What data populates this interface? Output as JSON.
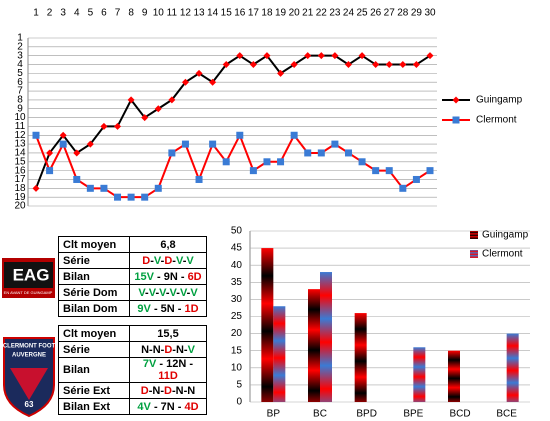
{
  "chart_data": [
    {
      "type": "line",
      "categories": [
        1,
        2,
        3,
        4,
        5,
        6,
        7,
        8,
        9,
        10,
        11,
        12,
        13,
        14,
        15,
        16,
        17,
        18,
        19,
        20,
        21,
        22,
        23,
        24,
        25,
        26,
        27,
        28,
        29,
        30
      ],
      "ylim": [
        1,
        20
      ],
      "y_inverted": true,
      "yticks": [
        1,
        2,
        3,
        4,
        5,
        6,
        7,
        8,
        9,
        10,
        11,
        12,
        13,
        14,
        15,
        16,
        17,
        18,
        19,
        20
      ],
      "grid": true,
      "legend": "right",
      "series": [
        {
          "name": "Guingamp",
          "color": "#000000",
          "marker_color": "#ff0000",
          "marker": "diamond",
          "values": [
            18,
            14,
            12,
            14,
            13,
            11,
            11,
            8,
            10,
            9,
            8,
            6,
            5,
            6,
            4,
            3,
            4,
            3,
            5,
            4,
            3,
            3,
            3,
            4,
            3,
            4,
            4,
            4,
            4,
            3
          ]
        },
        {
          "name": "Clermont",
          "color": "#ff0000",
          "marker_color": "#3a7bd5",
          "marker": "square",
          "values": [
            12,
            16,
            13,
            17,
            18,
            18,
            19,
            19,
            19,
            18,
            14,
            13,
            17,
            13,
            15,
            12,
            16,
            15,
            15,
            12,
            14,
            14,
            13,
            14,
            15,
            16,
            16,
            18,
            17,
            16
          ]
        }
      ]
    },
    {
      "type": "bar",
      "categories": [
        "BP",
        "BC",
        "BPD",
        "BPE",
        "BCD",
        "BCE"
      ],
      "ylim": [
        0,
        50
      ],
      "yticks": [
        0,
        5,
        10,
        15,
        20,
        25,
        30,
        35,
        40,
        45,
        50
      ],
      "grid": true,
      "legend": "top-right",
      "series": [
        {
          "name": "Guingamp",
          "colors": [
            "#ff0000",
            "#000000"
          ],
          "values": [
            45,
            33,
            26,
            0,
            15,
            0
          ]
        },
        {
          "name": "Clermont",
          "colors": [
            "#3a7bd5",
            "#ff0000"
          ],
          "values": [
            28,
            38,
            0,
            16,
            0,
            20
          ]
        }
      ]
    }
  ],
  "teams": [
    {
      "logo": {
        "title": "EAG",
        "subtitle": "EN AVANT DE GUINGAMP"
      },
      "table": [
        [
          "Clt moyen",
          "6,8"
        ],
        [
          "Série",
          "D-V-D-V-V"
        ],
        [
          "Bilan",
          "15V - 9N - 6D"
        ],
        [
          "Série Dom",
          "V-V-V-V-V-V"
        ],
        [
          "Bilan Dom",
          "9V - 5N - 1D"
        ]
      ]
    },
    {
      "logo": {
        "lines": [
          "CLERMONT FOOT",
          "AUVERGNE"
        ],
        "number": "63"
      },
      "table": [
        [
          "Clt moyen",
          "15,5"
        ],
        [
          "Série",
          "N-N-D-N-V"
        ],
        [
          "Bilan",
          "7V - 12N - 11D"
        ],
        [
          "Série Ext",
          "D-N-D-N-N"
        ],
        [
          "Bilan Ext",
          "4V - 7N - 4D"
        ]
      ]
    }
  ]
}
